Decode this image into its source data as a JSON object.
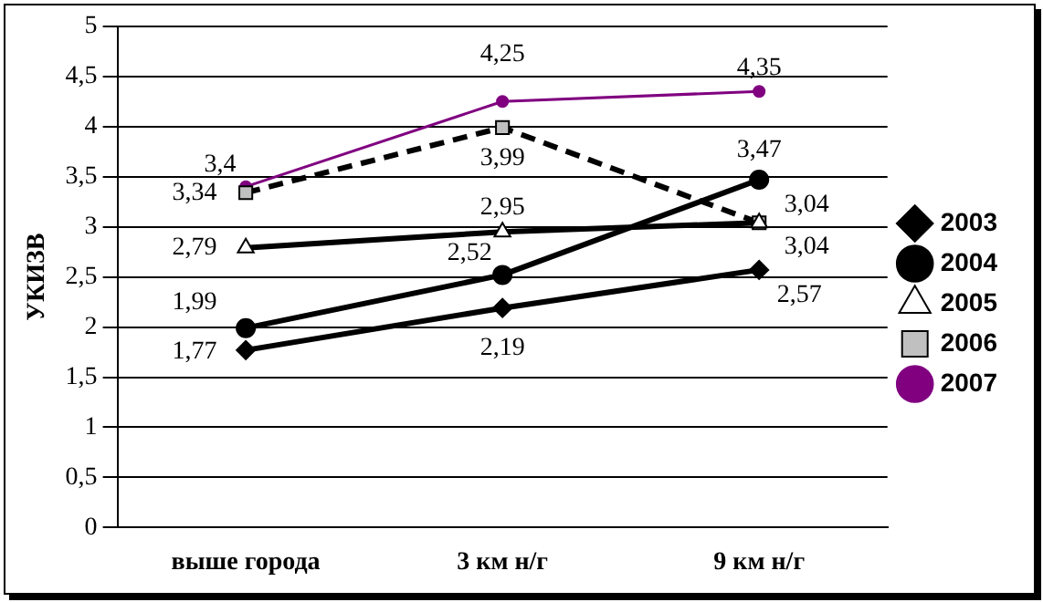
{
  "chart_data": {
    "type": "line",
    "ylabel": "УКИЗВ",
    "categories": [
      "выше города",
      "3 км н/г",
      "9 км н/г"
    ],
    "series": [
      {
        "name": "2003",
        "color": "#000000",
        "marker": "diamond",
        "line_style": "solid",
        "values": [
          1.77,
          2.19,
          2.57
        ],
        "value_labels": [
          "1,77",
          "2,19",
          "2,57"
        ]
      },
      {
        "name": "2004",
        "color": "#000000",
        "marker": "circle",
        "line_style": "solid",
        "values": [
          1.99,
          2.52,
          3.47
        ],
        "value_labels": [
          "1,99",
          "2,52",
          "3,47"
        ]
      },
      {
        "name": "2005",
        "color": "#000000",
        "marker": "triangle",
        "line_style": "solid",
        "values": [
          2.79,
          2.95,
          3.04
        ],
        "value_labels": [
          "2,79",
          "2,95",
          "3,04"
        ]
      },
      {
        "name": "2006",
        "color": "#000000",
        "marker": "square",
        "line_style": "dashed",
        "values": [
          3.34,
          3.99,
          3.04
        ],
        "value_labels": [
          "3,34",
          "3,99",
          "3,04"
        ]
      },
      {
        "name": "2007",
        "color": "#800080",
        "marker": "circle",
        "line_style": "solid",
        "values": [
          3.4,
          4.25,
          4.35
        ],
        "value_labels": [
          "3,4",
          "4,25",
          "4,35"
        ]
      }
    ],
    "ylim": [
      0,
      5
    ],
    "yticks": [
      0,
      {
        "value": 0.5,
        "label": "0,5"
      },
      1,
      {
        "value": 1.5,
        "label": "1,5"
      },
      2,
      {
        "value": 2.5,
        "label": "2,5"
      },
      3,
      {
        "value": 3.5,
        "label": "3,5"
      },
      4,
      {
        "value": 4.5,
        "label": "4,5"
      },
      5
    ],
    "grid": "y",
    "legend": "right"
  }
}
